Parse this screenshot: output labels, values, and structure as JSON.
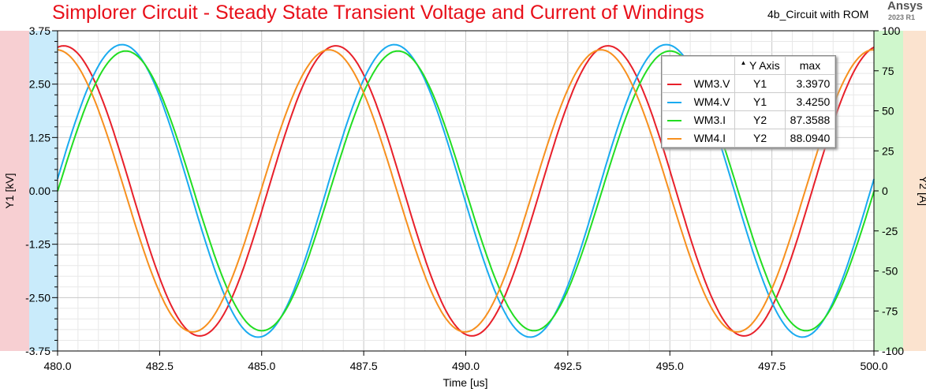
{
  "header": {
    "title": "Simplorer Circuit - Steady State Transient Voltage and Current of Windings",
    "design": "4b_Circuit with ROM",
    "brand": "Ansys",
    "release": "2023 R1"
  },
  "legend": {
    "col_axis": "Y Axis",
    "col_max": "max",
    "sort_icon": "triangle-up-icon",
    "rows": [
      {
        "name": "WM3.V",
        "axis": "Y1",
        "max": "3.3970"
      },
      {
        "name": "WM4.V",
        "axis": "Y1",
        "max": "3.4250"
      },
      {
        "name": "WM3.I",
        "axis": "Y2",
        "max": "87.3588"
      },
      {
        "name": "WM4.I",
        "axis": "Y2",
        "max": "88.0940"
      }
    ]
  },
  "chart_data": {
    "type": "line",
    "title": "Simplorer Circuit - Steady State Transient Voltage and Current of Windings",
    "xlabel": "Time [us]",
    "ylabel": "Y1 [kV]",
    "y2label": "Y2 [A]",
    "xlim": [
      480,
      500
    ],
    "ylim": [
      -3.75,
      3.75
    ],
    "y2lim": [
      -100,
      100
    ],
    "xticks": [
      "480.0",
      "482.5",
      "485.0",
      "487.5",
      "490.0",
      "492.5",
      "495.0",
      "497.5",
      "500.0"
    ],
    "yticks": [
      "3.75",
      "2.50",
      "1.25",
      "0.00",
      "-1.25",
      "-2.50",
      "-3.75"
    ],
    "y2ticks": [
      "100",
      "75",
      "50",
      "25",
      "0",
      "-25",
      "-50",
      "-75",
      "-100"
    ],
    "grid": true,
    "legend_position": "top-right",
    "series": [
      {
        "name": "WM3.V",
        "axis": "Y1",
        "color": "#e8202a",
        "amplitude": 3.397,
        "period_us": 6.667,
        "peak_time_us": 480.15
      },
      {
        "name": "WM4.V",
        "axis": "Y1",
        "color": "#1aabf0",
        "amplitude": 3.425,
        "period_us": 6.667,
        "peak_time_us": 481.58
      },
      {
        "name": "WM3.I",
        "axis": "Y2",
        "color": "#22dd22",
        "amplitude": 87.3588,
        "period_us": 6.667,
        "peak_time_us": 481.67
      },
      {
        "name": "WM4.I",
        "axis": "Y2",
        "color": "#f7901e",
        "amplitude": 88.094,
        "period_us": 6.667,
        "peak_time_us": 479.98
      }
    ]
  }
}
